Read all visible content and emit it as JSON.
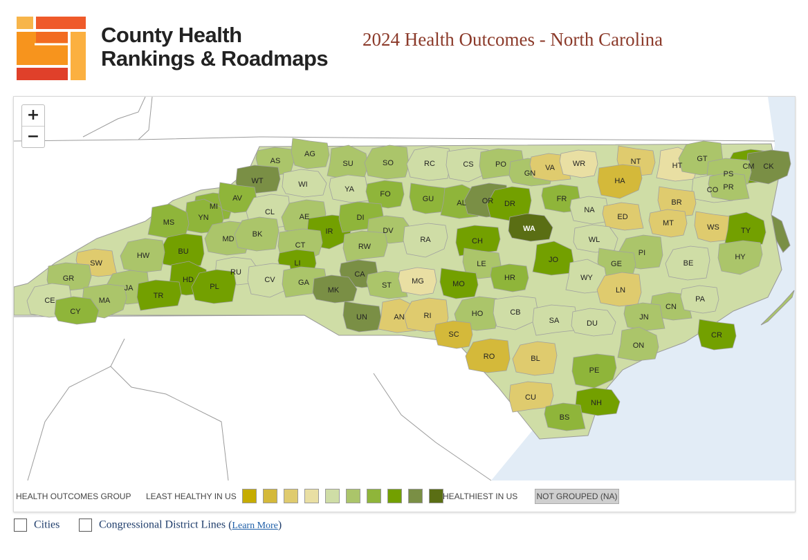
{
  "header": {
    "logo_line1": "County Health",
    "logo_line2": "Rankings & Roadmaps",
    "title": "2024 Health Outcomes - North Carolina"
  },
  "zoom": {
    "in_label": "+",
    "out_label": "−"
  },
  "legend": {
    "group_label": "HEALTH OUTCOMES GROUP",
    "least_label": "LEAST HEALTHY IN US",
    "healthiest_label": "HEALTHIEST IN US",
    "not_grouped_label": "NOT GROUPED (NA)",
    "colors": [
      "#c6ac00",
      "#d4b93a",
      "#dfcb6e",
      "#e9dfa3",
      "#cfdda6",
      "#abc56a",
      "#8fb53a",
      "#73a000",
      "#7a8f45",
      "#5a6e14"
    ]
  },
  "options": {
    "cities_label": "Cities",
    "districts_label": "Congressional District Lines",
    "learn_more_label": "Learn More"
  },
  "counties": [
    {
      "abbr": "AS",
      "group": 6
    },
    {
      "abbr": "AG",
      "group": 6
    },
    {
      "abbr": "SU",
      "group": 6
    },
    {
      "abbr": "SO",
      "group": 6
    },
    {
      "abbr": "RC",
      "group": 5
    },
    {
      "abbr": "CS",
      "group": 5
    },
    {
      "abbr": "PO",
      "group": 6
    },
    {
      "abbr": "GN",
      "group": 6
    },
    {
      "abbr": "VA",
      "group": 3
    },
    {
      "abbr": "WR",
      "group": 4
    },
    {
      "abbr": "NT",
      "group": 3
    },
    {
      "abbr": "HT",
      "group": 4
    },
    {
      "abbr": "GT",
      "group": 6
    },
    {
      "abbr": "CM",
      "group": 8
    },
    {
      "abbr": "CK",
      "group": 9
    },
    {
      "abbr": "WT",
      "group": 9
    },
    {
      "abbr": "WI",
      "group": 5
    },
    {
      "abbr": "YA",
      "group": 5
    },
    {
      "abbr": "FO",
      "group": 7
    },
    {
      "abbr": "GU",
      "group": 7
    },
    {
      "abbr": "AL",
      "group": 7
    },
    {
      "abbr": "OR",
      "group": 9
    },
    {
      "abbr": "DR",
      "group": 8
    },
    {
      "abbr": "HA",
      "group": 2
    },
    {
      "abbr": "PS",
      "group": 6
    },
    {
      "abbr": "CO",
      "group": 5
    },
    {
      "abbr": "PR",
      "group": 6
    },
    {
      "abbr": "MI",
      "group": 7
    },
    {
      "abbr": "AV",
      "group": 7
    },
    {
      "abbr": "YN",
      "group": 7
    },
    {
      "abbr": "CL",
      "group": 5
    },
    {
      "abbr": "AE",
      "group": 6
    },
    {
      "abbr": "IR",
      "group": 8
    },
    {
      "abbr": "DI",
      "group": 7
    },
    {
      "abbr": "DV",
      "group": 6
    },
    {
      "abbr": "FR",
      "group": 7
    },
    {
      "abbr": "NA",
      "group": 5
    },
    {
      "abbr": "BR",
      "group": 3
    },
    {
      "abbr": "MS",
      "group": 7
    },
    {
      "abbr": "MD",
      "group": 6
    },
    {
      "abbr": "BK",
      "group": 6
    },
    {
      "abbr": "RA",
      "group": 5
    },
    {
      "abbr": "CH",
      "group": 8
    },
    {
      "abbr": "WA",
      "group": 10
    },
    {
      "abbr": "ED",
      "group": 3
    },
    {
      "abbr": "MT",
      "group": 3
    },
    {
      "abbr": "WS",
      "group": 3
    },
    {
      "abbr": "TY",
      "group": 8
    },
    {
      "abbr": "BU",
      "group": 8
    },
    {
      "abbr": "HW",
      "group": 6
    },
    {
      "abbr": "CT",
      "group": 6
    },
    {
      "abbr": "RW",
      "group": 6
    },
    {
      "abbr": "WL",
      "group": 5
    },
    {
      "abbr": "SW",
      "group": 3
    },
    {
      "abbr": "LI",
      "group": 8
    },
    {
      "abbr": "LE",
      "group": 6
    },
    {
      "abbr": "JO",
      "group": 8
    },
    {
      "abbr": "PI",
      "group": 6
    },
    {
      "abbr": "BE",
      "group": 5
    },
    {
      "abbr": "HY",
      "group": 6
    },
    {
      "abbr": "GR",
      "group": 6
    },
    {
      "abbr": "RU",
      "group": 5
    },
    {
      "abbr": "CA",
      "group": 9
    },
    {
      "abbr": "HR",
      "group": 7
    },
    {
      "abbr": "GE",
      "group": 6
    },
    {
      "abbr": "HD",
      "group": 8
    },
    {
      "abbr": "JA",
      "group": 6
    },
    {
      "abbr": "PL",
      "group": 8
    },
    {
      "abbr": "CV",
      "group": 5
    },
    {
      "abbr": "GA",
      "group": 6
    },
    {
      "abbr": "MK",
      "group": 9
    },
    {
      "abbr": "ST",
      "group": 6
    },
    {
      "abbr": "MG",
      "group": 4
    },
    {
      "abbr": "MO",
      "group": 8
    },
    {
      "abbr": "WY",
      "group": 5
    },
    {
      "abbr": "LN",
      "group": 3
    },
    {
      "abbr": "CE",
      "group": 5
    },
    {
      "abbr": "MA",
      "group": 6
    },
    {
      "abbr": "TR",
      "group": 8
    },
    {
      "abbr": "CY",
      "group": 7
    },
    {
      "abbr": "CN",
      "group": 6
    },
    {
      "abbr": "PA",
      "group": 5
    },
    {
      "abbr": "UN",
      "group": 9
    },
    {
      "abbr": "AN",
      "group": 3
    },
    {
      "abbr": "RI",
      "group": 3
    },
    {
      "abbr": "HO",
      "group": 6
    },
    {
      "abbr": "CB",
      "group": 5
    },
    {
      "abbr": "SA",
      "group": 5
    },
    {
      "abbr": "DU",
      "group": 5
    },
    {
      "abbr": "JN",
      "group": 6
    },
    {
      "abbr": "SC",
      "group": 2
    },
    {
      "abbr": "CR",
      "group": 8
    },
    {
      "abbr": "ON",
      "group": 6
    },
    {
      "abbr": "RO",
      "group": 2
    },
    {
      "abbr": "BL",
      "group": 3
    },
    {
      "abbr": "PE",
      "group": 7
    },
    {
      "abbr": "CU",
      "group": 3
    },
    {
      "abbr": "NH",
      "group": 8
    },
    {
      "abbr": "BS",
      "group": 7
    }
  ]
}
